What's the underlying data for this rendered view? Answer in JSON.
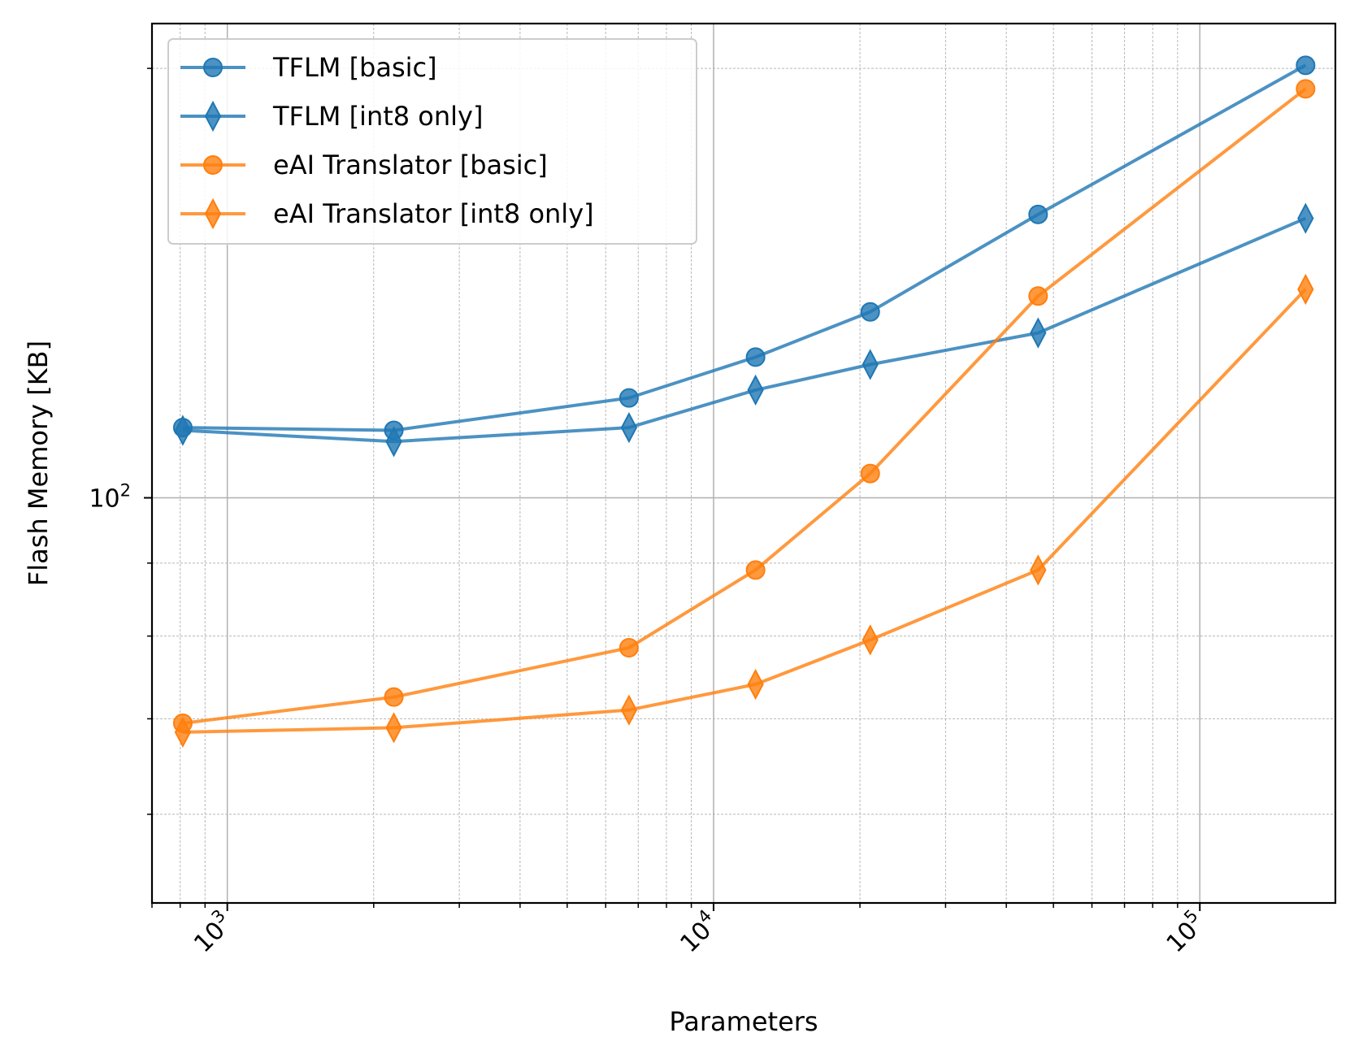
{
  "chart_data": {
    "type": "line",
    "xlabel": "Parameters",
    "ylabel": "Flash Memory [KB]",
    "xscale": "log",
    "yscale": "log",
    "xlim": [
      700,
      190000
    ],
    "ylim": [
      52,
      215
    ],
    "grid": true,
    "legend_position": "top-left",
    "x": [
      810,
      2200,
      6700,
      12200,
      21000,
      46500,
      165000
    ],
    "series": [
      {
        "name": "TFLM [basic]",
        "color": "#1f77b4",
        "marker": "circle",
        "values": [
          112,
          111.5,
          117.5,
          125.5,
          135,
          158,
          201
        ]
      },
      {
        "name": "TFLM [int8 only]",
        "color": "#1f77b4",
        "marker": "diamond",
        "values": [
          111.5,
          109.5,
          112,
          119,
          124,
          130.5,
          157
        ]
      },
      {
        "name": "eAI Translator [basic]",
        "color": "#ff7f0e",
        "marker": "circle",
        "values": [
          69.5,
          72.5,
          78.5,
          89,
          104,
          138.5,
          193.5
        ]
      },
      {
        "name": "eAI Translator [int8 only]",
        "color": "#ff7f0e",
        "marker": "diamond",
        "values": [
          68.5,
          69,
          71,
          74,
          79.5,
          89,
          140
        ]
      }
    ],
    "x_ticks": [
      {
        "value": 1000,
        "base": "10",
        "exp": "3"
      },
      {
        "value": 10000,
        "base": "10",
        "exp": "4"
      },
      {
        "value": 100000,
        "base": "10",
        "exp": "5"
      }
    ],
    "y_ticks": [
      {
        "value": 100,
        "base": "10",
        "exp": "2"
      }
    ]
  }
}
